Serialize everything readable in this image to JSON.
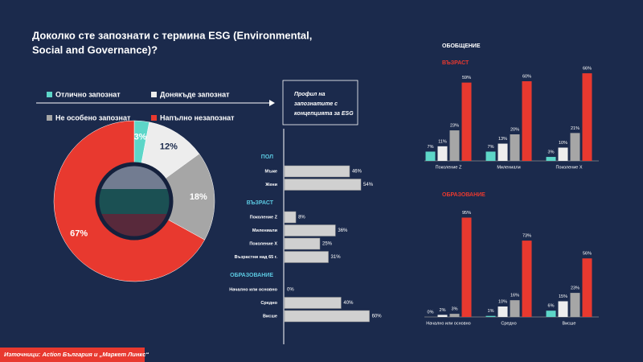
{
  "title": [
    "Доколко сте запознати с термина ESG (Environmental,",
    "Social and Governance)?"
  ],
  "summary_title": "ОБОБЩЕНИЕ",
  "source": "Източници: Action България и „Маркет Линкс“",
  "chart_data": [
    {
      "type": "pie",
      "categories": [
        "Отлично запознат",
        "Донякъде запознат",
        "Не особено запознат",
        "Напълно незапознат"
      ],
      "values": [
        3,
        12,
        18,
        67
      ],
      "value_labels": [
        "3%",
        "12%",
        "18%",
        "67%"
      ],
      "colors": [
        "#5dd6c8",
        "#ededed",
        "#a6a6a6",
        "#e8392f"
      ],
      "label_colors": [
        "#ffffff",
        "#1b2a4c",
        "#ffffff",
        "#ffffff"
      ]
    },
    {
      "type": "hbar",
      "title": [
        "Профил на",
        "запознатите с",
        "концепцията за ESG"
      ],
      "color": "#d0d0d0",
      "groups": [
        {
          "name": "ПОЛ",
          "categories": [
            "Мъже",
            "Жени"
          ],
          "values": [
            46,
            54
          ],
          "value_labels": [
            "46%",
            "54%"
          ]
        },
        {
          "name": "ВЪЗРАСТ",
          "categories": [
            "Поколение Z",
            "Милениали",
            "Поколение X",
            "Възрастни над 65 г."
          ],
          "values": [
            8,
            36,
            25,
            31
          ],
          "value_labels": [
            "8%",
            "36%",
            "25%",
            "31%"
          ]
        },
        {
          "name": "ОБРАЗОВАНИЕ",
          "categories": [
            "Начално или основно",
            "Средно",
            "Висше"
          ],
          "values": [
            0,
            40,
            60
          ],
          "value_labels": [
            "0%",
            "40%",
            "60%"
          ]
        }
      ]
    },
    {
      "type": "grouped-bar",
      "title": "ВЪЗРАСТ",
      "categories": [
        "Поколение Z",
        "Милениали",
        "Поколение X"
      ],
      "series": [
        {
          "color": "#5dd6c8",
          "values": [
            7,
            7,
            3
          ],
          "value_labels": [
            "7%",
            "7%",
            "3%"
          ]
        },
        {
          "color": "#ededed",
          "values": [
            11,
            13,
            10
          ],
          "value_labels": [
            "11%",
            "13%",
            "10%"
          ]
        },
        {
          "color": "#a6a6a6",
          "values": [
            23,
            20,
            21
          ],
          "value_labels": [
            "23%",
            "20%",
            "21%"
          ]
        },
        {
          "color": "#e8392f",
          "values": [
            59,
            60,
            66
          ],
          "value_labels": [
            "59%",
            "60%",
            "66%"
          ]
        }
      ]
    },
    {
      "type": "grouped-bar",
      "title": "ОБРАЗОВАНИЕ",
      "categories": [
        "Начално или основно",
        "Средно",
        "Висше"
      ],
      "series": [
        {
          "color": "#5dd6c8",
          "values": [
            0,
            1,
            6
          ],
          "value_labels": [
            "0%",
            "1%",
            "6%"
          ]
        },
        {
          "color": "#ededed",
          "values": [
            2,
            10,
            15
          ],
          "value_labels": [
            "2%",
            "10%",
            "15%"
          ]
        },
        {
          "color": "#a6a6a6",
          "values": [
            3,
            16,
            23
          ],
          "value_labels": [
            "3%",
            "16%",
            "23%"
          ]
        },
        {
          "color": "#e8392f",
          "values": [
            95,
            73,
            56
          ],
          "value_labels": [
            "95%",
            "73%",
            "56%"
          ]
        }
      ]
    }
  ]
}
